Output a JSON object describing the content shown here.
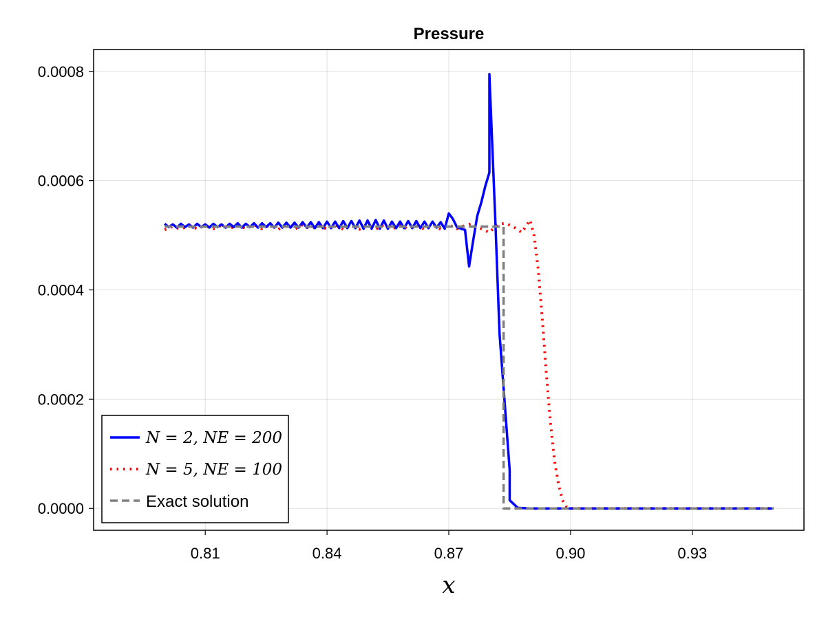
{
  "chart_data": {
    "type": "line",
    "title": "Pressure",
    "xlabel": "x",
    "ylabel": "",
    "xlim": [
      0.7825,
      0.9575
    ],
    "ylim": [
      -4e-05,
      0.00084
    ],
    "xticks": [
      0.81,
      0.84,
      0.87,
      0.9,
      0.93
    ],
    "xtick_labels": [
      "0.81",
      "0.84",
      "0.87",
      "0.90",
      "0.93"
    ],
    "yticks": [
      0.0,
      0.0002,
      0.0004,
      0.0006,
      0.0008
    ],
    "ytick_labels": [
      "0.0000",
      "0.0002",
      "0.0004",
      "0.0006",
      "0.0008"
    ],
    "grid": true,
    "legend_position": "bottom-left",
    "series": [
      {
        "name": "N = 2, NE = 200",
        "color": "#0000ff",
        "style": "solid",
        "x": [
          0.8,
          0.801,
          0.802,
          0.803,
          0.804,
          0.805,
          0.806,
          0.807,
          0.808,
          0.809,
          0.81,
          0.811,
          0.812,
          0.813,
          0.814,
          0.815,
          0.816,
          0.817,
          0.818,
          0.819,
          0.82,
          0.821,
          0.822,
          0.823,
          0.824,
          0.825,
          0.826,
          0.827,
          0.828,
          0.829,
          0.83,
          0.831,
          0.832,
          0.833,
          0.834,
          0.835,
          0.836,
          0.837,
          0.838,
          0.839,
          0.84,
          0.841,
          0.842,
          0.843,
          0.844,
          0.845,
          0.846,
          0.847,
          0.848,
          0.849,
          0.85,
          0.851,
          0.852,
          0.853,
          0.854,
          0.855,
          0.856,
          0.857,
          0.858,
          0.859,
          0.86,
          0.861,
          0.862,
          0.863,
          0.864,
          0.865,
          0.866,
          0.867,
          0.868,
          0.869,
          0.87,
          0.871,
          0.872,
          0.873,
          0.874,
          0.875,
          0.876,
          0.877,
          0.878,
          0.879,
          0.88,
          0.88,
          0.8815,
          0.8825,
          0.8835,
          0.8845,
          0.885,
          0.885,
          0.887,
          0.89,
          0.9,
          0.91,
          0.92,
          0.93,
          0.94,
          0.95
        ],
        "y": [
          0.000521,
          0.000515,
          0.00052,
          0.000514,
          0.000521,
          0.000515,
          0.00052,
          0.000514,
          0.000521,
          0.000515,
          0.00052,
          0.000514,
          0.000521,
          0.000515,
          0.00052,
          0.000514,
          0.000521,
          0.000515,
          0.000522,
          0.000514,
          0.000521,
          0.000515,
          0.000522,
          0.000514,
          0.000522,
          0.000515,
          0.000522,
          0.000514,
          0.000523,
          0.000514,
          0.000523,
          0.000514,
          0.000523,
          0.000514,
          0.000524,
          0.000514,
          0.000524,
          0.000513,
          0.000524,
          0.000513,
          0.000525,
          0.000513,
          0.000525,
          0.000513,
          0.000526,
          0.000513,
          0.000526,
          0.000513,
          0.000527,
          0.000512,
          0.000527,
          0.000512,
          0.000528,
          0.000512,
          0.000527,
          0.000512,
          0.000525,
          0.000513,
          0.000525,
          0.000513,
          0.000526,
          0.000513,
          0.000526,
          0.000513,
          0.000525,
          0.000513,
          0.000525,
          0.000514,
          0.000524,
          0.000512,
          0.00054,
          0.00053,
          0.000515,
          0.000512,
          0.00051,
          0.000443,
          0.00049,
          0.000535,
          0.00056,
          0.00059,
          0.000615,
          0.000795,
          0.00052,
          0.00032,
          0.00022,
          0.00012,
          7e-05,
          1.5e-05,
          1e-06,
          0.0,
          0.0,
          0.0,
          0.0,
          0.0,
          0.0,
          0.0
        ]
      },
      {
        "name": "N = 5, NE = 100",
        "color": "#ff0000",
        "style": "dotted",
        "x": [
          0.8,
          0.802,
          0.804,
          0.806,
          0.808,
          0.81,
          0.812,
          0.814,
          0.816,
          0.818,
          0.82,
          0.822,
          0.824,
          0.826,
          0.828,
          0.83,
          0.832,
          0.834,
          0.836,
          0.838,
          0.84,
          0.842,
          0.844,
          0.846,
          0.848,
          0.85,
          0.852,
          0.854,
          0.856,
          0.858,
          0.86,
          0.862,
          0.864,
          0.866,
          0.868,
          0.87,
          0.872,
          0.874,
          0.876,
          0.878,
          0.88,
          0.882,
          0.884,
          0.886,
          0.888,
          0.89,
          0.891,
          0.892,
          0.893,
          0.894,
          0.895,
          0.896,
          0.897,
          0.898,
          0.899,
          0.9,
          0.905,
          0.91,
          0.92,
          0.93,
          0.94,
          0.95
        ],
        "y": [
          0.00051,
          0.000516,
          0.000511,
          0.000518,
          0.000512,
          0.000518,
          0.000512,
          0.000518,
          0.000512,
          0.000519,
          0.000512,
          0.000519,
          0.000512,
          0.000519,
          0.000511,
          0.000519,
          0.000511,
          0.000519,
          0.000511,
          0.000519,
          0.000511,
          0.000519,
          0.000511,
          0.000519,
          0.000511,
          0.000519,
          0.000511,
          0.000519,
          0.000511,
          0.000519,
          0.000511,
          0.000519,
          0.000511,
          0.00052,
          0.000511,
          0.000519,
          0.000512,
          0.000518,
          0.000522,
          0.000512,
          0.000505,
          0.00052,
          0.000522,
          0.000515,
          0.000505,
          0.000528,
          0.0005,
          0.00044,
          0.00035,
          0.00025,
          0.00016,
          9e-05,
          4.5e-05,
          1.5e-05,
          3e-06,
          0.0,
          0.0,
          0.0,
          0.0,
          0.0,
          0.0,
          0.0
        ]
      },
      {
        "name": "Exact solution",
        "color": "#808080",
        "style": "dashed",
        "x": [
          0.8,
          0.8835,
          0.8835,
          0.95
        ],
        "y": [
          0.000516,
          0.000516,
          0.0,
          0.0
        ]
      }
    ]
  }
}
